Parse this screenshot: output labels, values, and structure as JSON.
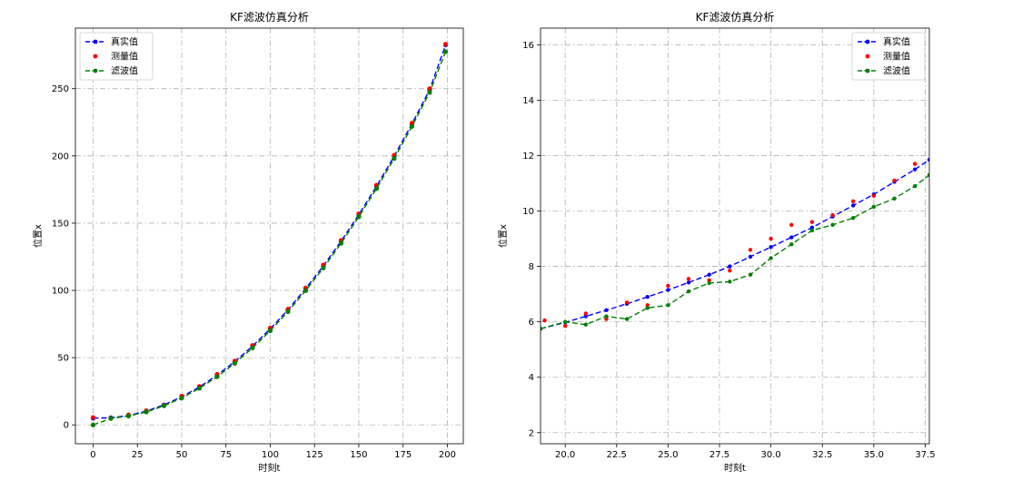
{
  "colors": {
    "true": "#0000ff",
    "measured": "#ff0000",
    "filtered": "#008000",
    "grid": "#b0b0b0"
  },
  "chart_data": [
    {
      "type": "line",
      "title": "KF滤波仿真分析",
      "xlabel": "时刻t",
      "ylabel": "位置x",
      "xlim": [
        -10,
        209
      ],
      "ylim": [
        -14,
        295
      ],
      "xticks": [
        0,
        25,
        50,
        75,
        100,
        125,
        150,
        175,
        200
      ],
      "xtick_labels": [
        "0",
        "25",
        "50",
        "75",
        "100",
        "125",
        "150",
        "175",
        "200"
      ],
      "yticks": [
        0,
        50,
        100,
        150,
        200,
        250
      ],
      "ytick_labels": [
        "0",
        "50",
        "100",
        "150",
        "200",
        "250"
      ],
      "grid": true,
      "legend": "top-left",
      "series": [
        {
          "name": "真实值",
          "key": "true",
          "style": "dash-dot",
          "marker": "circle",
          "x": [
            0,
            10,
            20,
            30,
            40,
            50,
            60,
            70,
            80,
            90,
            100,
            110,
            120,
            130,
            140,
            150,
            160,
            170,
            180,
            190,
            199
          ],
          "y": [
            5,
            5.3,
            7.0,
            10.2,
            14.9,
            20.9,
            28.2,
            37.0,
            47.1,
            58.6,
            71.4,
            85.6,
            101.3,
            118.2,
            136.6,
            156.4,
            177.4,
            199.9,
            223.8,
            249.2,
            282.5
          ]
        },
        {
          "name": "测量值",
          "key": "measured",
          "style": "none",
          "marker": "circle",
          "x": [
            0,
            10,
            20,
            30,
            40,
            50,
            60,
            70,
            80,
            90,
            100,
            110,
            120,
            130,
            140,
            150,
            160,
            170,
            180,
            190,
            199
          ],
          "y": [
            5.5,
            5.0,
            7.4,
            10.6,
            14.5,
            21.4,
            28.6,
            37.6,
            47.5,
            59.1,
            72.0,
            86.0,
            101.8,
            118.9,
            137.2,
            157.0,
            178.2,
            200.5,
            224.4,
            250.0,
            283.0
          ]
        },
        {
          "name": "滤波值",
          "key": "filtered",
          "style": "dash-dot",
          "marker": "circle",
          "x": [
            0,
            10,
            20,
            30,
            40,
            50,
            60,
            70,
            80,
            90,
            100,
            110,
            120,
            130,
            140,
            150,
            160,
            170,
            180,
            190,
            199
          ],
          "y": [
            0,
            4.8,
            6.6,
            9.6,
            14.2,
            20.0,
            27.2,
            35.8,
            45.8,
            57.2,
            70.0,
            84.2,
            99.8,
            116.7,
            135.0,
            154.7,
            175.7,
            198.1,
            221.9,
            247.2,
            277.5
          ]
        }
      ]
    },
    {
      "type": "line",
      "title": "KF滤波仿真分析",
      "xlabel": "时刻t",
      "ylabel": "位置x",
      "xlim": [
        18.8,
        37.7
      ],
      "ylim": [
        1.6,
        16.6
      ],
      "xticks": [
        20,
        22.5,
        25,
        27.5,
        30,
        32.5,
        35,
        37.5
      ],
      "xtick_labels": [
        "20.0",
        "22.5",
        "25.0",
        "27.5",
        "30.0",
        "32.5",
        "35.0",
        "37.5"
      ],
      "yticks": [
        2,
        4,
        6,
        8,
        10,
        12,
        14,
        16
      ],
      "ytick_labels": [
        "2",
        "4",
        "6",
        "8",
        "10",
        "12",
        "14",
        "16"
      ],
      "grid": true,
      "legend": "top-right",
      "series": [
        {
          "name": "真实值",
          "key": "true",
          "style": "dash-dot",
          "marker": "circle",
          "x": [
            18.8,
            20,
            21,
            22,
            23,
            24,
            25,
            26,
            27,
            28,
            29,
            30,
            31,
            32,
            33,
            34,
            35,
            36,
            37,
            37.7
          ],
          "y": [
            5.75,
            5.98,
            6.2,
            6.42,
            6.65,
            6.9,
            7.15,
            7.42,
            7.7,
            8.0,
            8.35,
            8.7,
            9.05,
            9.4,
            9.8,
            10.2,
            10.6,
            11.05,
            11.5,
            11.85
          ]
        },
        {
          "name": "测量值",
          "key": "measured",
          "style": "none",
          "marker": "circle",
          "x": [
            19,
            20,
            21,
            22,
            23,
            24,
            25,
            26,
            27,
            28,
            29,
            30,
            31,
            32,
            33,
            34,
            35,
            36,
            37
          ],
          "y": [
            6.05,
            5.85,
            6.3,
            6.1,
            6.7,
            6.6,
            7.3,
            7.55,
            7.5,
            7.85,
            8.6,
            9.0,
            9.5,
            9.6,
            9.85,
            10.35,
            10.55,
            11.1,
            11.7
          ]
        },
        {
          "name": "滤波值",
          "key": "filtered",
          "style": "dash-dot",
          "marker": "circle",
          "x": [
            18.8,
            20,
            21,
            22,
            23,
            24,
            25,
            26,
            27,
            28,
            29,
            30,
            31,
            32,
            33,
            34,
            35,
            36,
            37,
            37.7
          ],
          "y": [
            5.75,
            6.0,
            5.9,
            6.2,
            6.1,
            6.5,
            6.6,
            7.1,
            7.4,
            7.45,
            7.7,
            8.3,
            8.8,
            9.3,
            9.5,
            9.75,
            10.15,
            10.45,
            10.9,
            11.3
          ]
        }
      ]
    }
  ]
}
